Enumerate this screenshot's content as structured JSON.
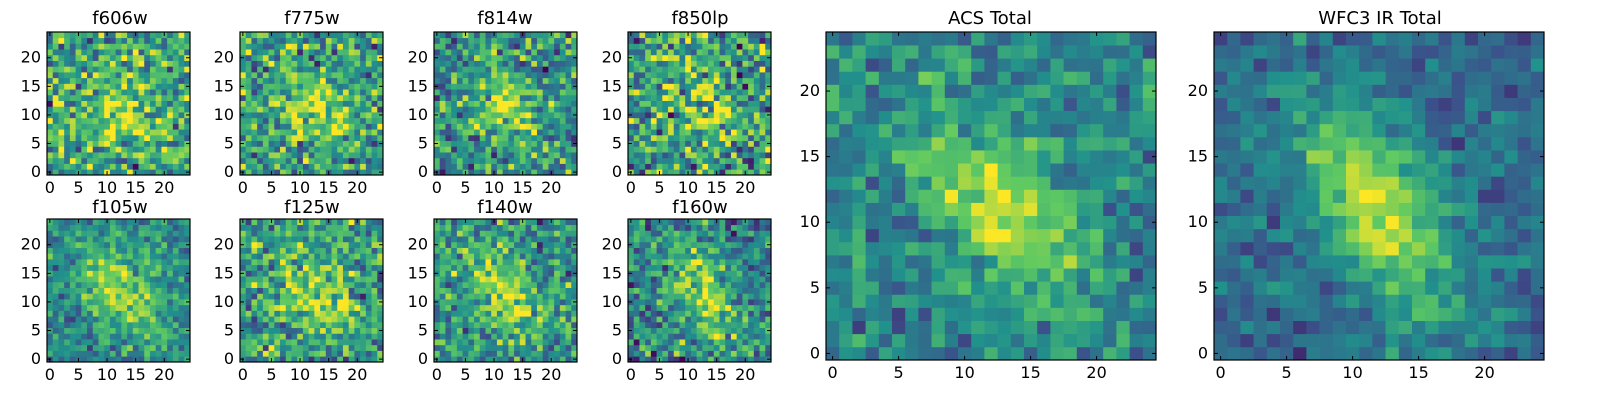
{
  "colormap": [
    "#440154",
    "#3b528b",
    "#21918c",
    "#5ec962",
    "#fde725"
  ],
  "chart_data": [
    {
      "type": "heatmap",
      "title": "f606w",
      "grid": false,
      "xlim": [
        -0.5,
        24.5
      ],
      "ylim": [
        -0.5,
        24.5
      ],
      "xticks": [
        "0",
        "5",
        "10",
        "15",
        "20"
      ],
      "yticks": [
        "0",
        "5",
        "10",
        "15",
        "20"
      ],
      "seed": 11,
      "center": [
        13,
        11
      ],
      "sigma": [
        5.5,
        3.5
      ],
      "rotation": -40,
      "amplitude": 0.28,
      "noise": 0.3,
      "base": 0.58
    },
    {
      "type": "heatmap",
      "title": "f775w",
      "grid": false,
      "xlim": [
        -0.5,
        24.5
      ],
      "ylim": [
        -0.5,
        24.5
      ],
      "xticks": [
        "0",
        "5",
        "10",
        "15",
        "20"
      ],
      "yticks": [
        "0",
        "5",
        "10",
        "15",
        "20"
      ],
      "seed": 23,
      "center": [
        13,
        11
      ],
      "sigma": [
        5.5,
        3.5
      ],
      "rotation": -40,
      "amplitude": 0.32,
      "noise": 0.28,
      "base": 0.55
    },
    {
      "type": "heatmap",
      "title": "f814w",
      "grid": false,
      "xlim": [
        -0.5,
        24.5
      ],
      "ylim": [
        -0.5,
        24.5
      ],
      "xticks": [
        "0",
        "5",
        "10",
        "15",
        "20"
      ],
      "yticks": [
        "0",
        "5",
        "10",
        "15",
        "20"
      ],
      "seed": 37,
      "center": [
        12,
        12
      ],
      "sigma": [
        5.0,
        3.0
      ],
      "rotation": -55,
      "amplitude": 0.38,
      "noise": 0.27,
      "base": 0.5
    },
    {
      "type": "heatmap",
      "title": "f850lp",
      "grid": false,
      "xlim": [
        -0.5,
        24.5
      ],
      "ylim": [
        -0.5,
        24.5
      ],
      "xticks": [
        "0",
        "5",
        "10",
        "15",
        "20"
      ],
      "yticks": [
        "0",
        "5",
        "10",
        "15",
        "20"
      ],
      "seed": 41,
      "center": [
        13,
        11
      ],
      "sigma": [
        5.0,
        3.0
      ],
      "rotation": -45,
      "amplitude": 0.25,
      "noise": 0.32,
      "base": 0.55
    },
    {
      "type": "heatmap",
      "title": "f105w",
      "grid": false,
      "xlim": [
        -0.5,
        24.5
      ],
      "ylim": [
        -0.5,
        24.5
      ],
      "xticks": [
        "0",
        "5",
        "10",
        "15",
        "20"
      ],
      "yticks": [
        "0",
        "5",
        "10",
        "15",
        "20"
      ],
      "seed": 53,
      "center": [
        12,
        12
      ],
      "sigma": [
        6.0,
        3.5
      ],
      "rotation": -45,
      "amplitude": 0.4,
      "noise": 0.18,
      "base": 0.48
    },
    {
      "type": "heatmap",
      "title": "f125w",
      "grid": false,
      "xlim": [
        -0.5,
        24.5
      ],
      "ylim": [
        -0.5,
        24.5
      ],
      "xticks": [
        "0",
        "5",
        "10",
        "15",
        "20"
      ],
      "yticks": [
        "0",
        "5",
        "10",
        "15",
        "20"
      ],
      "seed": 67,
      "center": [
        12,
        12
      ],
      "sigma": [
        6.0,
        4.0
      ],
      "rotation": -45,
      "amplitude": 0.32,
      "noise": 0.26,
      "base": 0.55
    },
    {
      "type": "heatmap",
      "title": "f140w",
      "grid": false,
      "xlim": [
        -0.5,
        24.5
      ],
      "ylim": [
        -0.5,
        24.5
      ],
      "xticks": [
        "0",
        "5",
        "10",
        "15",
        "20"
      ],
      "yticks": [
        "0",
        "5",
        "10",
        "15",
        "20"
      ],
      "seed": 79,
      "center": [
        12,
        11
      ],
      "sigma": [
        6.0,
        3.0
      ],
      "rotation": -55,
      "amplitude": 0.35,
      "noise": 0.24,
      "base": 0.52
    },
    {
      "type": "heatmap",
      "title": "f160w",
      "grid": false,
      "xlim": [
        -0.5,
        24.5
      ],
      "ylim": [
        -0.5,
        24.5
      ],
      "xticks": [
        "0",
        "5",
        "10",
        "15",
        "20"
      ],
      "yticks": [
        "0",
        "5",
        "10",
        "15",
        "20"
      ],
      "seed": 97,
      "center": [
        13,
        11
      ],
      "sigma": [
        6.0,
        3.0
      ],
      "rotation": -60,
      "amplitude": 0.4,
      "noise": 0.24,
      "base": 0.45
    },
    {
      "type": "heatmap",
      "title": "ACS Total",
      "grid": false,
      "xlim": [
        -0.5,
        24.5
      ],
      "ylim": [
        -0.5,
        24.5
      ],
      "xticks": [
        "0",
        "5",
        "10",
        "15",
        "20"
      ],
      "yticks": [
        "0",
        "5",
        "10",
        "15",
        "20"
      ],
      "seed": 131,
      "center": [
        13,
        11
      ],
      "sigma": [
        5.5,
        3.0
      ],
      "rotation": -50,
      "amplitude": 0.45,
      "noise": 0.16,
      "base": 0.45
    },
    {
      "type": "heatmap",
      "title": "WFC3 IR Total",
      "grid": false,
      "xlim": [
        -0.5,
        24.5
      ],
      "ylim": [
        -0.5,
        24.5
      ],
      "xticks": [
        "0",
        "5",
        "10",
        "15",
        "20"
      ],
      "yticks": [
        "0",
        "5",
        "10",
        "15",
        "20"
      ],
      "seed": 173,
      "center": [
        12,
        11
      ],
      "sigma": [
        6.0,
        3.0
      ],
      "rotation": -60,
      "amplitude": 0.55,
      "noise": 0.12,
      "base": 0.35
    }
  ]
}
